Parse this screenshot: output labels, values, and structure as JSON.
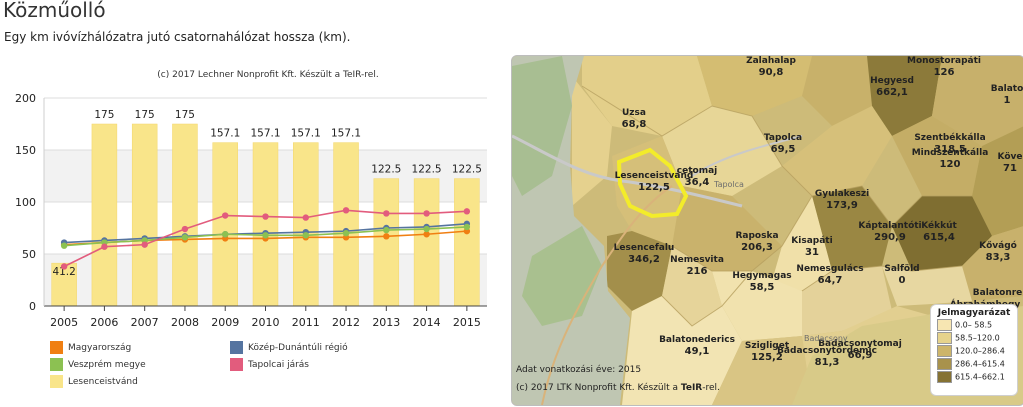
{
  "page": {
    "title": "Közműolló",
    "subtitle": "Egy km ivóvízhálózatra jutó csatornahálózat hossza (km)."
  },
  "chart_data": {
    "type": "bar+line",
    "credit": "(c) 2017 Lechner Nonprofit Kft. Készült a TeIR-rel.",
    "categories": [
      "2005",
      "2006",
      "2007",
      "2008",
      "2009",
      "2010",
      "2011",
      "2012",
      "2013",
      "2014",
      "2015"
    ],
    "ylim": [
      0,
      200
    ],
    "yticks": [
      0,
      50,
      100,
      150,
      200
    ],
    "bar_series": {
      "name": "Lesenceistvánd",
      "color": "#f9e58a",
      "values": [
        41.2,
        175,
        175,
        175,
        157.1,
        157.1,
        157.1,
        157.1,
        122.5,
        122.5,
        122.5
      ],
      "labels": [
        "41.2",
        "175",
        "175",
        "175",
        "157.1",
        "157.1",
        "157.1",
        "157.1",
        "122.5",
        "122.5",
        "122.5"
      ]
    },
    "line_series": [
      {
        "name": "Magyarország",
        "color": "#f07f12",
        "values": [
          59,
          61,
          63,
          64,
          65,
          65,
          66,
          66,
          67,
          69,
          72
        ]
      },
      {
        "name": "Közép-Dunántúli régió",
        "color": "#5574a0",
        "values": [
          61,
          63,
          65,
          67,
          69,
          70,
          71,
          72,
          75,
          76,
          79
        ]
      },
      {
        "name": "Veszprém megye",
        "color": "#8cc152",
        "values": [
          58,
          61,
          63,
          66,
          69,
          68,
          68,
          70,
          73,
          74,
          76
        ]
      },
      {
        "name": "Tapolcai járás",
        "color": "#e25c7d",
        "values": [
          38,
          57,
          59,
          74,
          87,
          86,
          85,
          92,
          89,
          89,
          91
        ]
      }
    ],
    "legend": [
      {
        "label": "Magyarország",
        "color": "#f07f12"
      },
      {
        "label": "Közép-Dunántúli régió",
        "color": "#5574a0"
      },
      {
        "label": "Veszprém megye",
        "color": "#8cc152"
      },
      {
        "label": "Tapolcai járás",
        "color": "#e25c7d"
      },
      {
        "label": "Lesenceistvánd",
        "color": "#f9e58a"
      }
    ]
  },
  "map": {
    "labels": [
      {
        "name": "Zalahalap",
        "value": "90,8"
      },
      {
        "name": "Monostorapáti",
        "value": "126"
      },
      {
        "name": "Hegyesd",
        "value": "662,1"
      },
      {
        "name": "Balato",
        "value": "1"
      },
      {
        "name": "Uzsa",
        "value": "68,8"
      },
      {
        "name": "Tapolca",
        "value": "69,5"
      },
      {
        "name": "Szentbékkálla",
        "value": "318,5"
      },
      {
        "name": "Mindszentkálla",
        "value": "120"
      },
      {
        "name": "Köve",
        "value": "71"
      },
      {
        "name": "Lesenceistvánd",
        "value": "122,5"
      },
      {
        "name": "cetomaj",
        "value": "36,4"
      },
      {
        "name": "Gyulakeszi",
        "value": "173,9"
      },
      {
        "name": "Káptalantóti",
        "value": "290,9"
      },
      {
        "name": "Kékkút",
        "value": "615,4"
      },
      {
        "name": "Kővágó",
        "value": "83,3"
      },
      {
        "name": "Raposka",
        "value": "206,3"
      },
      {
        "name": "Kisapáti",
        "value": "31"
      },
      {
        "name": "Lesencefalu",
        "value": "346,2"
      },
      {
        "name": "Nemesvita",
        "value": "216"
      },
      {
        "name": "Hegymagas",
        "value": "58,5"
      },
      {
        "name": "Nemesgulács",
        "value": "64,7"
      },
      {
        "name": "Salföld",
        "value": "0"
      },
      {
        "name": "Balatonrende",
        "value": ""
      },
      {
        "name": "Ábrahámhegy",
        "value": ""
      },
      {
        "name": "Balatonederics",
        "value": "49,1"
      },
      {
        "name": "Szigliget",
        "value": "125,2"
      },
      {
        "name": "Badacsonytomaj",
        "value": "66,9"
      },
      {
        "name": "Badacsonytördemic",
        "value": "81,3"
      }
    ],
    "town_names": [
      "Tapolca",
      "Badacsony"
    ],
    "data_year_note": "Adat vonatkozási éve: 2015",
    "credit_prefix": "(c) 2017 LTK Nonprofit Kft. Készült a ",
    "credit_brand": "TeIR",
    "credit_suffix": "-rel.",
    "legend_title": "Jelmagyarázat",
    "legend_rows": [
      {
        "label": "0.0– 58.5",
        "color": "#f7e6b2"
      },
      {
        "label": "58.5–120.0",
        "color": "#e6d38c"
      },
      {
        "label": "120.0–286.4",
        "color": "#cdb56a"
      },
      {
        "label": "286.4–615.4",
        "color": "#a8924c"
      },
      {
        "label": "615.4–662.1",
        "color": "#857233"
      }
    ]
  }
}
